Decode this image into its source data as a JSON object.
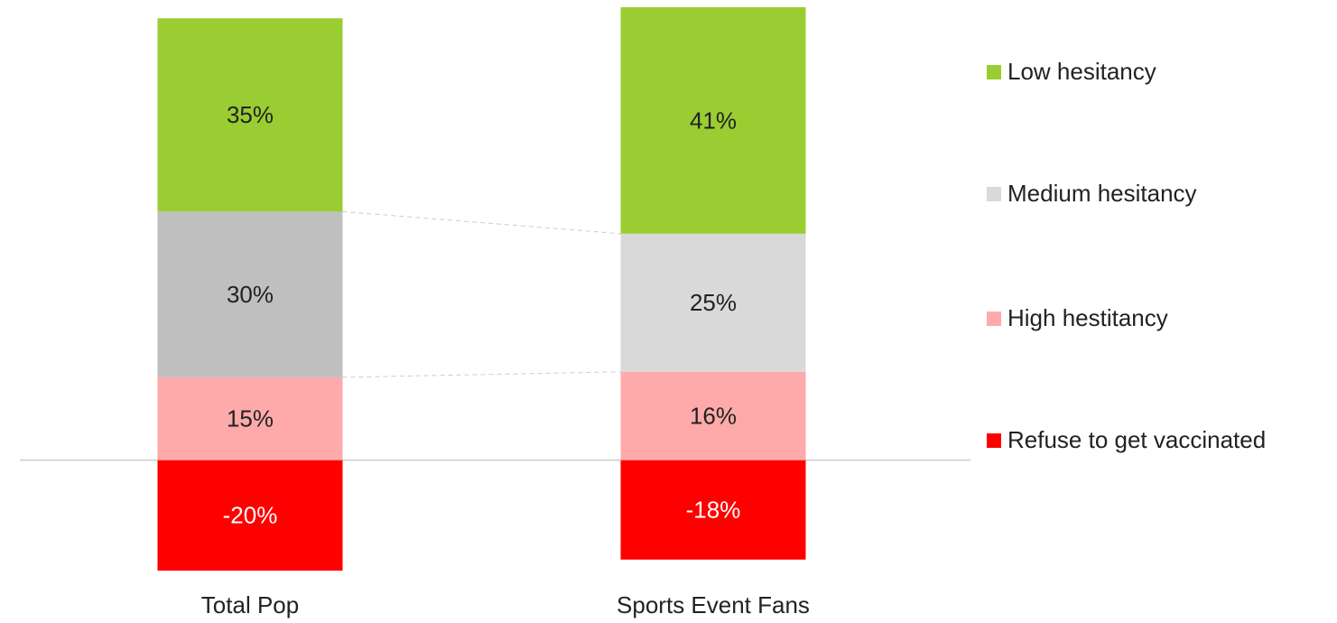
{
  "chart_data": {
    "type": "stacked_bar",
    "categories": [
      "Total Pop",
      "Sports Event Fans"
    ],
    "series": [
      {
        "name": "Low hesitancy",
        "color": "#9acd32",
        "values": [
          35,
          41
        ],
        "value_labels": [
          "35%",
          "41%"
        ],
        "label_color": "#222222"
      },
      {
        "name": "Medium hesitancy",
        "color": "#d9d9d9",
        "colors": [
          "#bfbfbf",
          "#d9d9d9"
        ],
        "values": [
          30,
          25
        ],
        "value_labels": [
          "30%",
          "25%"
        ],
        "label_color": "#222222"
      },
      {
        "name": "High hestitancy",
        "color": "#ffaaaa",
        "values": [
          15,
          16
        ],
        "value_labels": [
          "15%",
          "16%"
        ],
        "label_color": "#222222"
      },
      {
        "name": "Refuse to get vaccinated",
        "color": "#ff0000",
        "values": [
          -20,
          -18
        ],
        "value_labels": [
          "-20%",
          "-18%"
        ],
        "label_color": "#ffffff"
      }
    ],
    "legend": "right"
  }
}
